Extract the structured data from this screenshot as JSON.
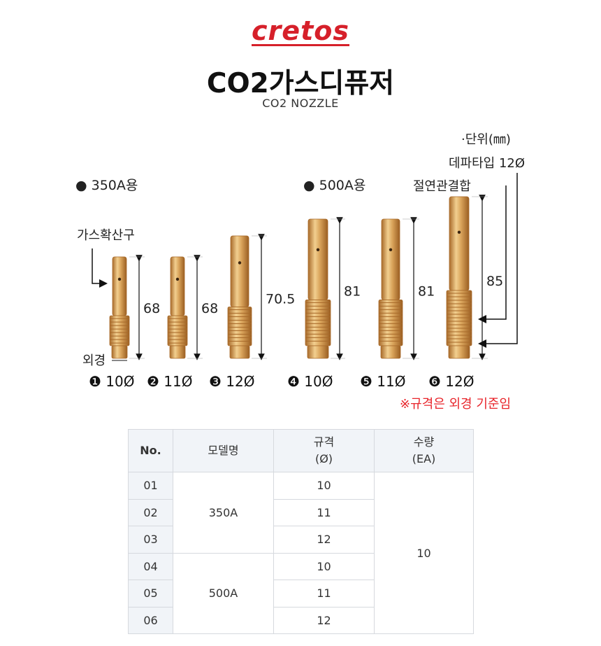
{
  "brand": {
    "logo_text": "cretos"
  },
  "header": {
    "title": "CO2가스디퓨저",
    "subtitle": "CO2 NOZZLE"
  },
  "figure": {
    "unit_label": "·단위(㎜)",
    "group_350": "● 350A용",
    "group_500": "● 500A용",
    "callout_gas": "가스확산구",
    "callout_outer": "외경",
    "callout_tap": "데파타입 12Ø",
    "callout_insul": "절연관결합",
    "note": "※규격은 외경 기준임",
    "nozzles": [
      {
        "mark": "❶",
        "spec": "10Ø",
        "length": "68"
      },
      {
        "mark": "❷",
        "spec": "11Ø",
        "length": "68"
      },
      {
        "mark": "❸",
        "spec": "12Ø",
        "length": "70.5"
      },
      {
        "mark": "❹",
        "spec": "10Ø",
        "length": "81"
      },
      {
        "mark": "❺",
        "spec": "11Ø",
        "length": "81"
      },
      {
        "mark": "❻",
        "spec": "12Ø",
        "length": "85"
      }
    ],
    "colors": {
      "brass": "#d9a35a",
      "brass_dark": "#a86a2a",
      "brass_light": "#f2cf8f",
      "note_red": "#e8252b"
    }
  },
  "table": {
    "headers": {
      "no": "No.",
      "model": "모델명",
      "spec": "규격",
      "spec_unit": "(Ø)",
      "qty": "수량",
      "qty_unit": "(EA)"
    },
    "model_groups": [
      "350A",
      "500A"
    ],
    "quantity": "10",
    "rows": [
      {
        "no": "01",
        "spec": "10"
      },
      {
        "no": "02",
        "spec": "11"
      },
      {
        "no": "03",
        "spec": "12"
      },
      {
        "no": "04",
        "spec": "10"
      },
      {
        "no": "05",
        "spec": "11"
      },
      {
        "no": "06",
        "spec": "12"
      }
    ]
  }
}
